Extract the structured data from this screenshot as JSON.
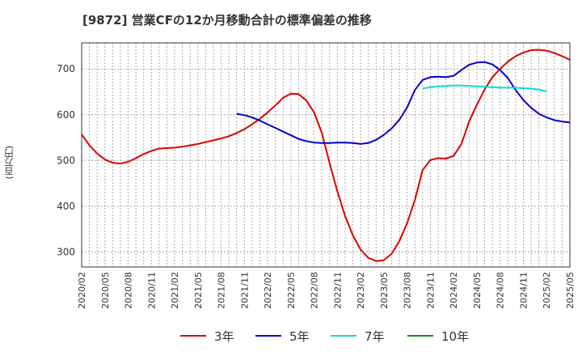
{
  "title": "[9872]  営業CFの12か月移動合計の標準偏差の推移",
  "ylabel": "(百万円)",
  "chart_data": {
    "type": "line",
    "title": "[9872]  営業CFの12か月移動合計の標準偏差の推移",
    "ylabel": "(百万円)",
    "xlabel": "",
    "ylim": [
      267,
      757
    ],
    "yticks": [
      300,
      400,
      500,
      600,
      700
    ],
    "xticks": [
      "2020/02",
      "2020/05",
      "2020/08",
      "2020/11",
      "2021/02",
      "2021/05",
      "2021/08",
      "2021/11",
      "2022/02",
      "2022/05",
      "2022/08",
      "2022/11",
      "2023/02",
      "2023/05",
      "2023/08",
      "2023/11",
      "2024/02",
      "2024/05",
      "2024/08",
      "2024/11",
      "2025/02",
      "2025/05"
    ],
    "x_start": "2020/02",
    "grid": true,
    "legend_position": "bottom",
    "series": [
      {
        "name": "3年",
        "color": "#dd0000",
        "start": "2020/02",
        "values": [
          557,
          533,
          515,
          502,
          495,
          493,
          497,
          505,
          514,
          521,
          526,
          527,
          528,
          530,
          533,
          536,
          540,
          544,
          548,
          553,
          560,
          568,
          579,
          591,
          605,
          620,
          637,
          646,
          645,
          631,
          605,
          560,
          494,
          432,
          378,
          336,
          305,
          287,
          280,
          282,
          296,
          324,
          363,
          414,
          479,
          501,
          505,
          504,
          510,
          536,
          585,
          622,
          655,
          682,
          700,
          716,
          728,
          736,
          741,
          742,
          740,
          735,
          728,
          720
        ]
      },
      {
        "name": "5年",
        "color": "#0000cc",
        "start": "2021/10",
        "values": [
          602,
          599,
          594,
          587,
          579,
          571,
          563,
          555,
          547,
          542,
          539,
          538,
          538,
          539,
          539,
          538,
          536,
          538,
          545,
          556,
          570,
          589,
          616,
          654,
          676,
          682,
          683,
          682,
          685,
          698,
          709,
          714,
          715,
          710,
          698,
          680,
          654,
          632,
          615,
          602,
          594,
          588,
          585,
          583
        ]
      },
      {
        "name": "7年",
        "color": "#00dddd",
        "start": "2023/10",
        "values": [
          657,
          660,
          662,
          663,
          664,
          664,
          663,
          662,
          661,
          660,
          659,
          659,
          659,
          658,
          657,
          655,
          651
        ]
      },
      {
        "name": "10年",
        "color": "#228822",
        "start": "2020/02",
        "values": []
      }
    ]
  }
}
